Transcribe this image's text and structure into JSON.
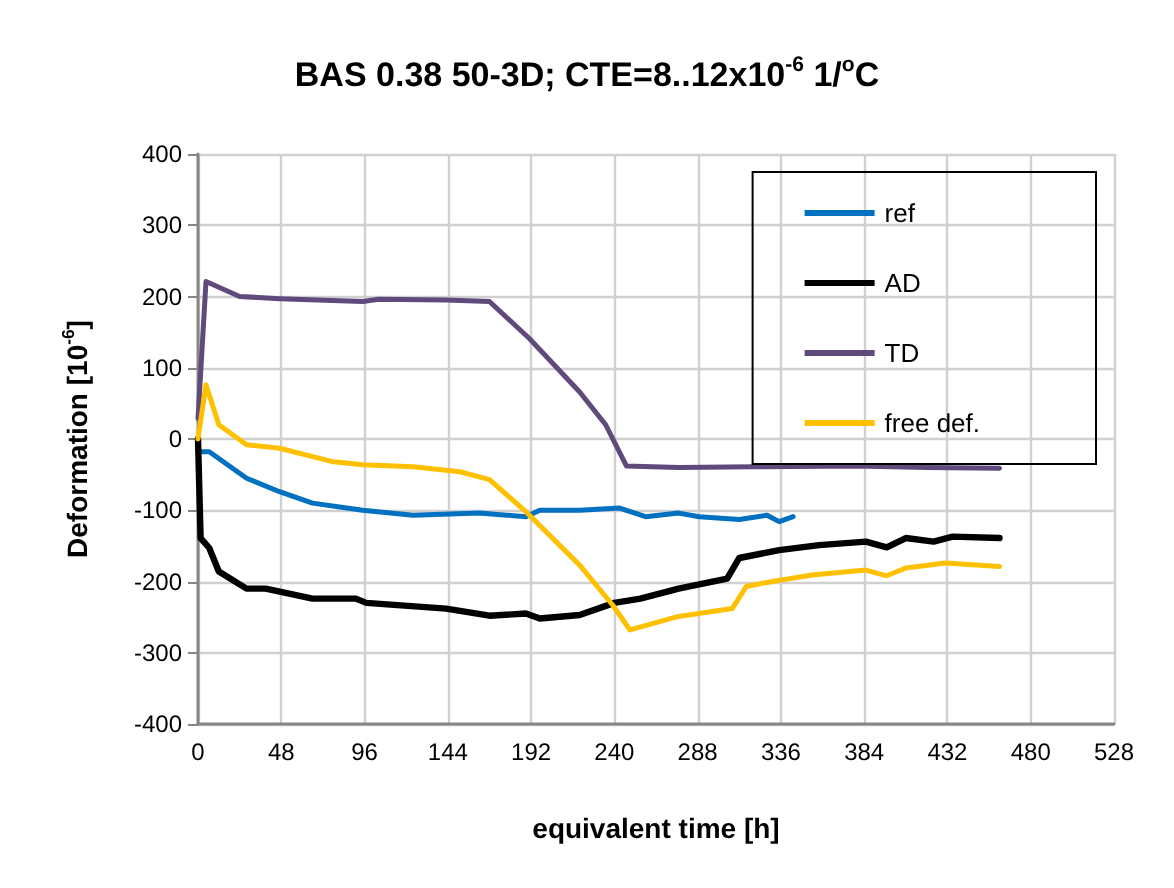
{
  "chart_data": {
    "type": "line",
    "title": "BAS 0.38 50-3D; CTE=8..12x10$^{-6}$ 1/$^{o}$C",
    "xlabel": "equivalent time [h]",
    "ylabel": "Deformation [10$^{-6}$]",
    "xlim": [
      0,
      528
    ],
    "xticks": [
      0,
      48,
      96,
      144,
      192,
      240,
      288,
      336,
      384,
      432,
      480,
      528
    ],
    "ylim": [
      -400,
      400
    ],
    "yticks": [
      -400,
      -300,
      -200,
      -100,
      0,
      100,
      200,
      300,
      400
    ],
    "grid": true,
    "legend": "top right",
    "marker": "none",
    "line_style": "solid",
    "series": [
      {
        "name": "ref",
        "color": "#0070c0",
        "x": [
          0,
          6.5,
          28,
          47,
          66,
          95,
          124,
          162,
          189,
          197,
          220,
          243,
          258,
          277,
          289,
          312,
          328,
          335,
          343
        ],
        "values": [
          -18,
          -18,
          -55,
          -74,
          -90,
          -100,
          -107,
          -104,
          -109,
          -100,
          -100,
          -97,
          -109,
          -104,
          -109,
          -113,
          -107,
          -116,
          -109
        ]
      },
      {
        "name": "AD",
        "color": "#000000",
        "x": [
          0,
          1.5,
          6.5,
          12,
          28,
          39,
          66,
          91,
          97,
          143,
          168,
          189,
          197,
          220,
          240,
          255,
          277,
          305,
          312,
          335,
          358,
          385,
          397,
          408,
          424,
          435,
          462
        ],
        "values": [
          0,
          -139,
          -153,
          -186,
          -210,
          -210,
          -224,
          -224,
          -230,
          -238,
          -248,
          -245,
          -252,
          -247,
          -230,
          -224,
          -210,
          -196,
          -167,
          -156,
          -149,
          -144,
          -152,
          -139,
          -144,
          -137,
          -139
        ]
      },
      {
        "name": "TD",
        "color": "#604a7b",
        "x": [
          0,
          4.6,
          24,
          47,
          95,
          104,
          143,
          168,
          191,
          220,
          235,
          247,
          277,
          320,
          380,
          420,
          462
        ],
        "values": [
          29,
          221,
          200,
          197,
          193,
          196,
          195,
          193,
          141,
          66,
          20,
          -38,
          -40,
          -39,
          -38,
          -40,
          -41
        ]
      },
      {
        "name": "free def.",
        "color": "#ffc000",
        "x": [
          0,
          4.6,
          12,
          28,
          47,
          78,
          95,
          124,
          151,
          168,
          189,
          220,
          239,
          249,
          277,
          308,
          316,
          331,
          354,
          385,
          397,
          408,
          431,
          462
        ],
        "values": [
          0,
          76,
          20,
          -8,
          -13,
          -32,
          -36,
          -39,
          -46,
          -57,
          -102,
          -177,
          -233,
          -268,
          -249,
          -238,
          -207,
          -200,
          -191,
          -184,
          -192,
          -181,
          -174,
          -179
        ]
      }
    ]
  }
}
